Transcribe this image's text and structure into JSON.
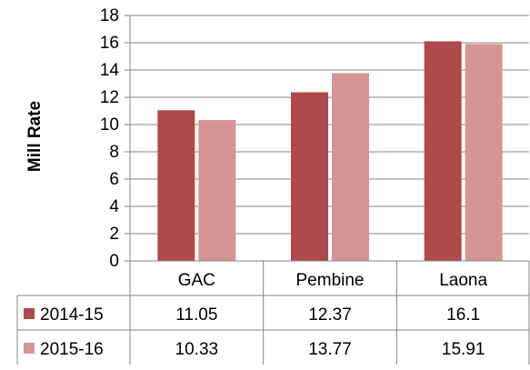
{
  "chart_data": {
    "type": "bar",
    "title": "",
    "xlabel": "",
    "ylabel": "Mill Rate",
    "ylim": [
      0,
      18
    ],
    "ytick_step": 2,
    "yticks": [
      "0",
      "2",
      "4",
      "6",
      "8",
      "10",
      "12",
      "14",
      "16",
      "18"
    ],
    "grid": true,
    "legend": "data-table",
    "categories": [
      "GAC",
      "Pembine",
      "Laona"
    ],
    "series": [
      {
        "name": "2014-15",
        "values": [
          11.05,
          12.37,
          16.1
        ],
        "labels": [
          "11.05",
          "12.37",
          "16.1"
        ],
        "color": "#B04A4A"
      },
      {
        "name": "2015-16",
        "values": [
          10.33,
          13.77,
          15.91
        ],
        "labels": [
          "10.33",
          "13.77",
          "15.91"
        ],
        "color": "#D69595"
      }
    ]
  }
}
